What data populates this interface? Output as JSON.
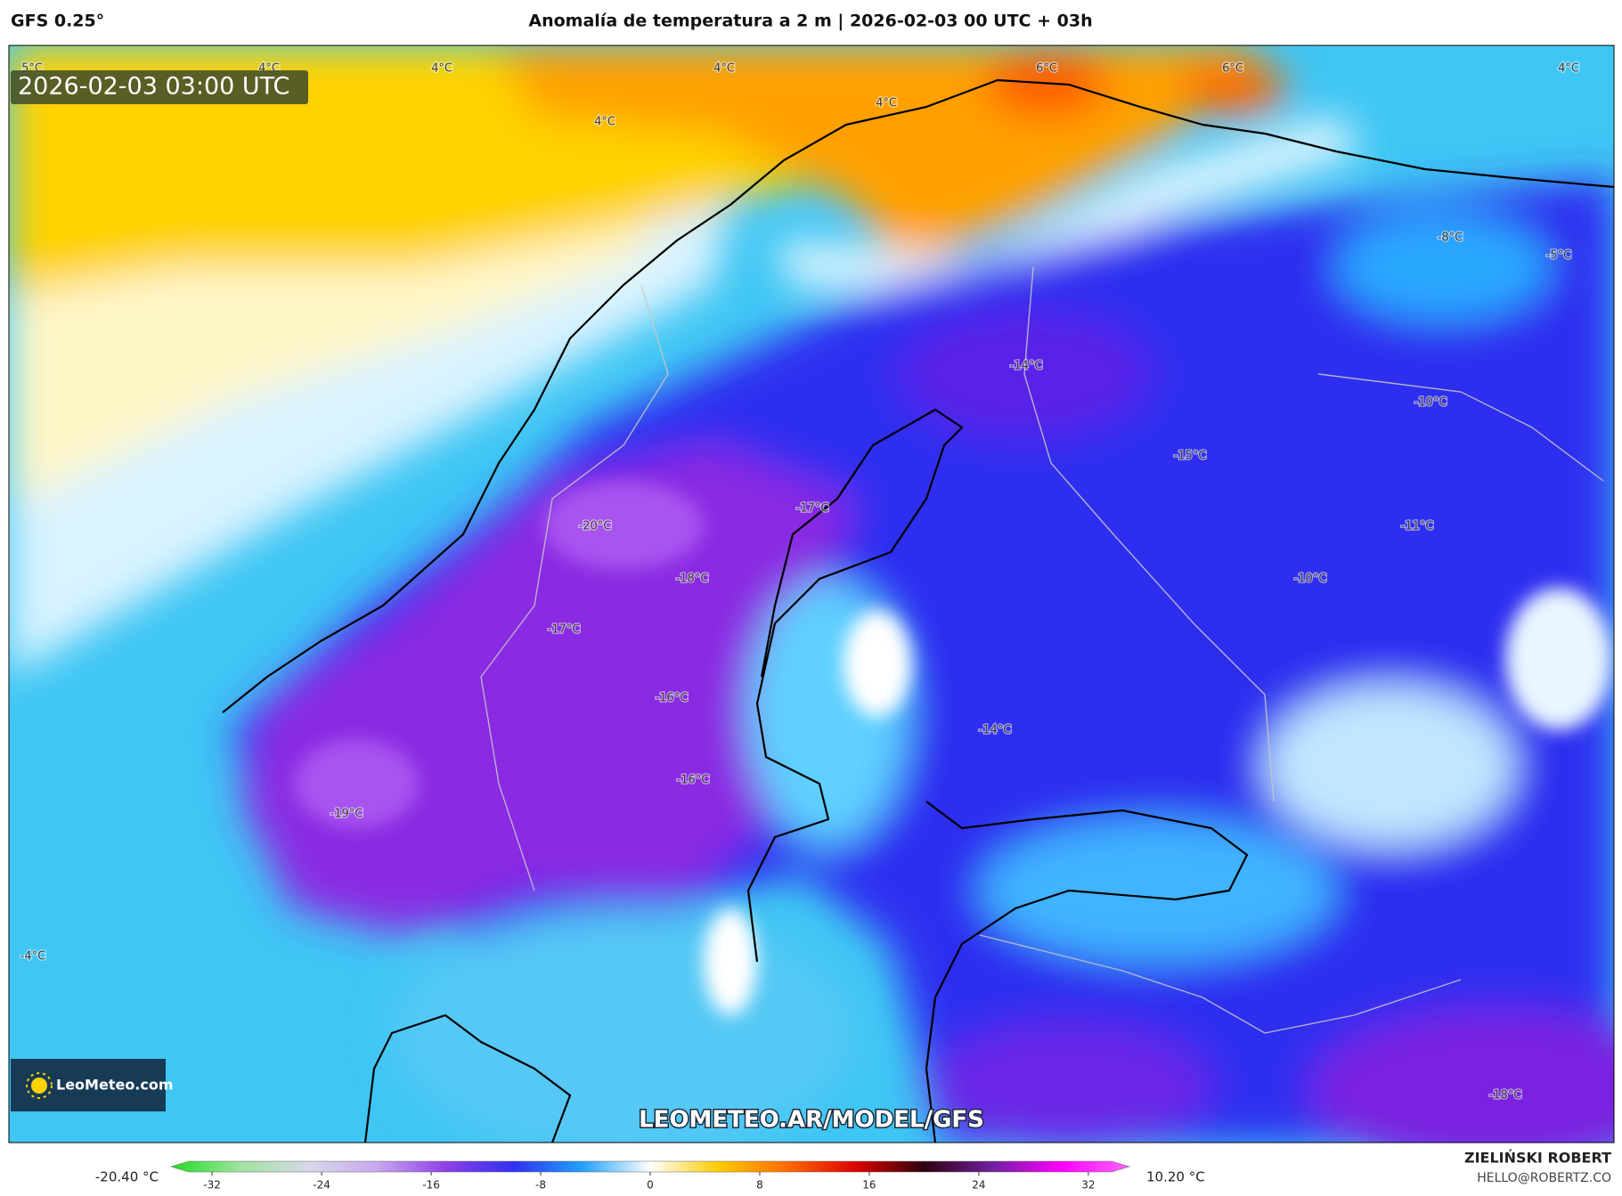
{
  "header": {
    "model": "GFS 0.25°",
    "title": "Anomalía de temperatura a 2 m | 2026-02-03 00 UTC + 03h"
  },
  "map": {
    "timestamp": "2026-02-03 03:00 UTC",
    "contour_labels": [
      "5°C",
      "4°C",
      "4°C",
      "4°C",
      "4°C",
      "4°C",
      "6°C",
      "6°C",
      "4°C",
      "-8°C",
      "-5°C",
      "-14°C",
      "-10°C",
      "-15°C",
      "-17°C",
      "-20°C",
      "-11°C",
      "-10°C",
      "-18°C",
      "-17°C",
      "-16°C",
      "-14°C",
      "-16°C",
      "-19°C",
      "-4°C",
      "-18°C"
    ],
    "logo": "LeoMeteo.com",
    "watermark": "LEOMETEO.AR/MODEL/GFS"
  },
  "colorbar": {
    "min_label": "-20.40 °C",
    "max_label": "10.20 °C",
    "range": [
      -35,
      35
    ],
    "ticks": [
      -32,
      -24,
      -16,
      -8,
      0,
      8,
      16,
      24,
      32
    ],
    "colors": [
      "#22dd22",
      "#9ee39e",
      "#d8d8e8",
      "#c8a8f0",
      "#9040e8",
      "#3030f0",
      "#20a0ff",
      "#ffffff",
      "#ffcc00",
      "#ff6a00",
      "#dd0000",
      "#300010",
      "#7020a0",
      "#ff00ff",
      "#ff66ff"
    ]
  },
  "footer": {
    "author": "ZIELIŃSKI ROBERT",
    "email": "HELLO@ROBERTZ.CO"
  }
}
